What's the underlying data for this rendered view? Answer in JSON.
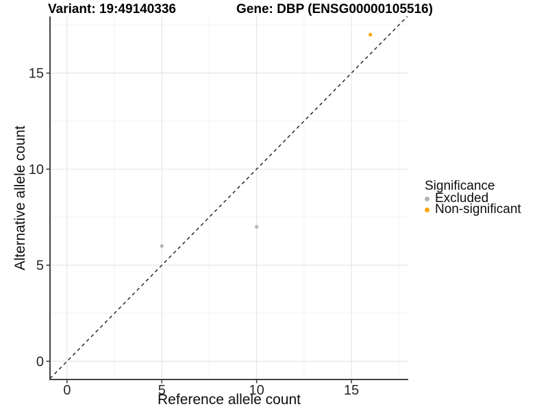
{
  "chart_data": {
    "type": "scatter",
    "titles": {
      "left": "Variant: 19:49140336",
      "right": "Gene: DBP (ENSG00000105516)"
    },
    "xlabel": "Reference allele count",
    "ylabel": "Alternative allele count",
    "xlim": [
      -0.9,
      18.0
    ],
    "ylim": [
      -0.95,
      17.95
    ],
    "x_ticks": [
      0,
      5,
      10,
      15
    ],
    "y_ticks": [
      0,
      5,
      10,
      15
    ],
    "x_minor_ticks": [
      2.5,
      7.5,
      12.5,
      17.5
    ],
    "y_minor_ticks": [
      2.5,
      7.5,
      12.5,
      17.5
    ],
    "grid": "major and minor, light gray on white",
    "reference_line": {
      "type": "identity",
      "slope": 1,
      "intercept": 0,
      "style": "dashed",
      "color": "#1a1a1a"
    },
    "legend": {
      "title": "Significance",
      "position": "right",
      "entries": [
        "Excluded",
        "Non-significant"
      ]
    },
    "series": [
      {
        "name": "Excluded",
        "color": "#B3B3B3",
        "points": [
          [
            5,
            6
          ],
          [
            10,
            7
          ]
        ]
      },
      {
        "name": "Non-significant",
        "color": "#FFA500",
        "points": [
          [
            16,
            17
          ]
        ]
      }
    ],
    "point_radius": 2.6,
    "colors": {
      "grid_major": "#E5E5E5",
      "grid_minor": "#F1F1F1",
      "axis_line": "#404040",
      "tick_mark": "#333333",
      "tick_label": "#262626"
    }
  }
}
